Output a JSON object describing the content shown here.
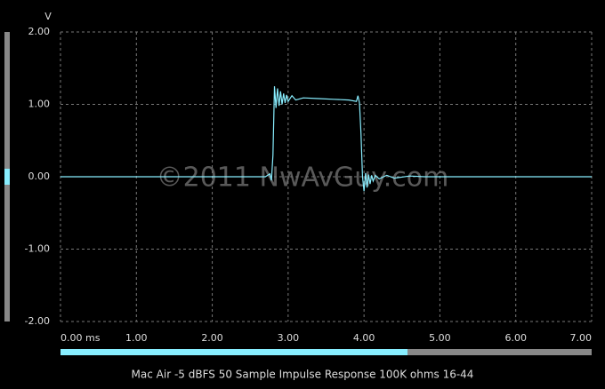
{
  "chart_data": {
    "type": "line",
    "title": "Mac Air -5 dBFS 50 Sample Impulse Response 100K ohms 16-44",
    "y_label": "V",
    "annotation": "©2011 NwAvGuy.com",
    "x": [
      0,
      2.7,
      2.76,
      2.78,
      2.8,
      2.82,
      2.84,
      2.86,
      2.88,
      2.9,
      2.92,
      2.94,
      2.96,
      2.98,
      3.0,
      3.05,
      3.1,
      3.2,
      3.4,
      3.6,
      3.8,
      3.9,
      3.92,
      3.94,
      3.96,
      3.98,
      4.0,
      4.02,
      4.04,
      4.06,
      4.08,
      4.1,
      4.12,
      4.15,
      4.2,
      4.3,
      4.4,
      4.6,
      4.8,
      5.0,
      5.2,
      7.0
    ],
    "series": [
      {
        "color": "#88eeff",
        "values": [
          0,
          0,
          0.04,
          -0.05,
          0.3,
          1.25,
          0.95,
          1.22,
          0.98,
          1.18,
          1.0,
          1.15,
          1.02,
          1.13,
          1.04,
          1.12,
          1.06,
          1.09,
          1.08,
          1.07,
          1.06,
          1.04,
          1.12,
          1.02,
          0.6,
          0.0,
          -0.2,
          0.05,
          -0.15,
          0.03,
          -0.1,
          0.02,
          -0.06,
          0.02,
          -0.03,
          0.02,
          -0.02,
          0.01,
          0,
          0,
          0,
          0
        ]
      }
    ],
    "xlim": [
      0,
      7
    ],
    "ylim": [
      -2,
      2
    ],
    "xticks": [
      {
        "value": 0,
        "label": "0.00 ms"
      },
      {
        "value": 1,
        "label": "1.00"
      },
      {
        "value": 2,
        "label": "2.00"
      },
      {
        "value": 3,
        "label": "3.00"
      },
      {
        "value": 4,
        "label": "4.00"
      },
      {
        "value": 5,
        "label": "5.00"
      },
      {
        "value": 6,
        "label": "6.00"
      },
      {
        "value": 7,
        "label": "7.00"
      }
    ],
    "yticks": [
      {
        "value": 2,
        "label": "2.00"
      },
      {
        "value": 1,
        "label": "1.00"
      },
      {
        "value": 0,
        "label": "0.00"
      },
      {
        "value": -1,
        "label": "-1.00"
      },
      {
        "value": -2,
        "label": "-2.00"
      }
    ],
    "grid": true
  }
}
